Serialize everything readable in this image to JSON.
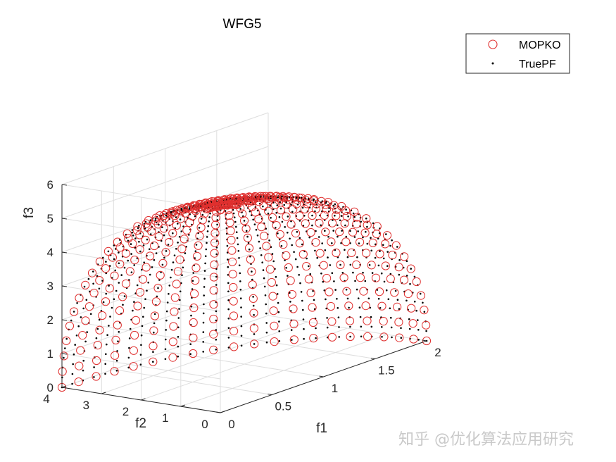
{
  "chart_data": {
    "type": "scatter3d",
    "title": "WFG5",
    "xlabel": "f1",
    "ylabel": "f2",
    "zlabel": "f3",
    "xlim": [
      0,
      2
    ],
    "ylim": [
      0,
      4
    ],
    "zlim": [
      0,
      6
    ],
    "xticks": [
      "0",
      "0.5",
      "1",
      "1.5",
      "2"
    ],
    "yticks": [
      "0",
      "1",
      "2",
      "3",
      "4"
    ],
    "zticks": [
      "0",
      "1",
      "2",
      "3",
      "4",
      "5",
      "6"
    ],
    "grid": true,
    "legend_position": "top-right",
    "surface": "f1^2/4 + f2^2/16 + f3^2/36 = 1, first octant (spherical front scaled by 2, 4, 6)",
    "series": [
      {
        "name": "MOPKO",
        "marker": "open-circle",
        "color": "#e0302f",
        "grid_divisions": 20
      },
      {
        "name": "TruePF",
        "marker": "dot",
        "color": "#000000",
        "grid_divisions": 32
      }
    ]
  },
  "watermark": "知乎 @优化算法应用研究"
}
